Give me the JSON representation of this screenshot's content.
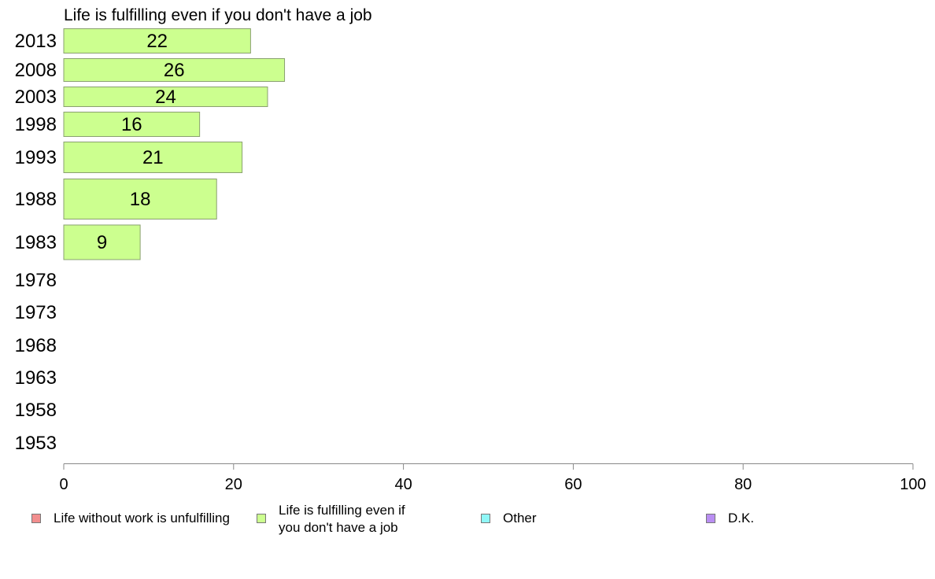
{
  "chart_data": {
    "type": "bar",
    "orientation": "horizontal",
    "title": "Life is fulfilling even if you don't have a job",
    "categories": [
      "2013",
      "2008",
      "2003",
      "1998",
      "1993",
      "1988",
      "1983",
      "1978",
      "1973",
      "1968",
      "1963",
      "1958",
      "1953"
    ],
    "series": [
      {
        "name": "Life is fulfilling even if you don't have a job",
        "values": [
          22,
          26,
          24,
          16,
          21,
          18,
          9,
          null,
          null,
          null,
          null,
          null,
          null
        ]
      }
    ],
    "xlim": [
      0,
      100
    ],
    "xticks": [
      "0",
      "20",
      "40",
      "60",
      "80",
      "100"
    ],
    "grid": false,
    "legend_position": "bottom"
  },
  "legend": [
    {
      "label": "Life without work is unfulfilling",
      "color": "#f28e8e"
    },
    {
      "label": "Life is fulfilling even if you don't have a job",
      "color": "#ccff8f"
    },
    {
      "label": "Other",
      "color": "#8ff7f7"
    },
    {
      "label": "D.K.",
      "color": "#b98ef2"
    }
  ],
  "colors": {
    "bar_fill": "#ccff8f",
    "bar_stroke": "#8aa070",
    "axis": "#888888"
  }
}
